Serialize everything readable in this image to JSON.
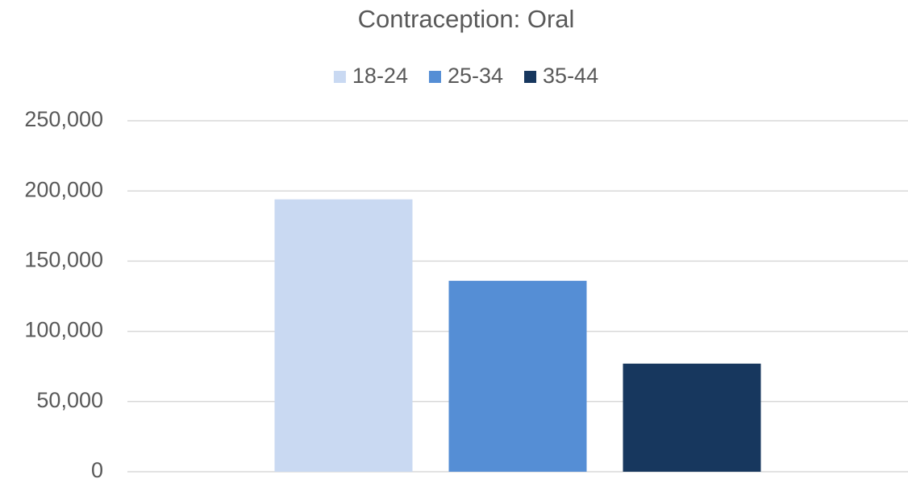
{
  "chart_data": {
    "type": "bar",
    "title": "Contraception: Oral",
    "categories": [
      null
    ],
    "series": [
      {
        "name": "18-24",
        "color": "#c9d9f2",
        "values": [
          194000
        ]
      },
      {
        "name": "25-34",
        "color": "#558ed5",
        "values": [
          136000
        ]
      },
      {
        "name": "35-44",
        "color": "#17375e",
        "values": [
          77000
        ]
      }
    ],
    "ylim": [
      0,
      250000
    ],
    "yticks": [
      0,
      {
        "value": 50000,
        "label": "50,000"
      },
      {
        "value": 100000,
        "label": "100,000"
      },
      {
        "value": 150000,
        "label": "150,000"
      },
      {
        "value": 200000,
        "label": "200,000"
      },
      {
        "value": 250000,
        "label": "250,000"
      }
    ],
    "grid": true,
    "legend": "top"
  }
}
